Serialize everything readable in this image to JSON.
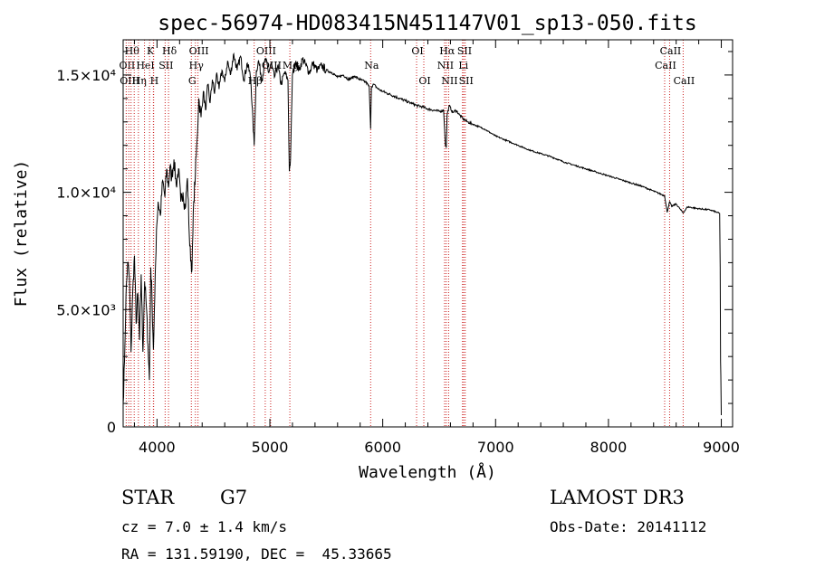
{
  "chart_data": {
    "type": "line",
    "title": "spec-56974-HD083415N451147V01_sp13-050.fits",
    "xlabel": "Wavelength (Å)",
    "ylabel": "Flux (relative)",
    "xlim": [
      3700,
      9100
    ],
    "ylim": [
      0,
      16500
    ],
    "xticks": [
      {
        "value": 4000,
        "label": "4000"
      },
      {
        "value": 5000,
        "label": "5000"
      },
      {
        "value": 6000,
        "label": "6000"
      },
      {
        "value": 7000,
        "label": "7000"
      },
      {
        "value": 8000,
        "label": "8000"
      },
      {
        "value": 9000,
        "label": "9000"
      }
    ],
    "yticks": [
      {
        "value": 0,
        "label": "0"
      },
      {
        "value": 5000,
        "label": "5.0×10³"
      },
      {
        "value": 10000,
        "label": "1.0×10⁴"
      },
      {
        "value": 15000,
        "label": "1.5×10⁴"
      }
    ],
    "spectrum": {
      "wavelength": [
        3700,
        3712,
        3725,
        3740,
        3755,
        3770,
        3785,
        3800,
        3815,
        3830,
        3845,
        3860,
        3875,
        3890,
        3905,
        3920,
        3933,
        3945,
        3955,
        3968,
        3980,
        3995,
        4010,
        4030,
        4050,
        4070,
        4085,
        4101,
        4115,
        4130,
        4150,
        4170,
        4190,
        4210,
        4230,
        4250,
        4270,
        4290,
        4310,
        4325,
        4340,
        4355,
        4370,
        4390,
        4410,
        4430,
        4450,
        4470,
        4490,
        4510,
        4530,
        4550,
        4575,
        4600,
        4625,
        4650,
        4680,
        4710,
        4740,
        4770,
        4800,
        4830,
        4861,
        4880,
        4900,
        4930,
        4960,
        4990,
        5010,
        5040,
        5070,
        5100,
        5130,
        5160,
        5172,
        5183,
        5200,
        5230,
        5260,
        5290,
        5320,
        5350,
        5380,
        5420,
        5460,
        5500,
        5550,
        5600,
        5650,
        5700,
        5750,
        5800,
        5850,
        5880,
        5893,
        5900,
        5920,
        5960,
        6000,
        6050,
        6100,
        6150,
        6200,
        6250,
        6300,
        6350,
        6400,
        6450,
        6500,
        6540,
        6555,
        6563,
        6570,
        6590,
        6620,
        6650,
        6680,
        6710,
        6750,
        6800,
        6850,
        6900,
        6950,
        7000,
        7100,
        7200,
        7300,
        7400,
        7500,
        7600,
        7700,
        7800,
        7900,
        8000,
        8100,
        8200,
        8300,
        8400,
        8450,
        8498,
        8520,
        8542,
        8560,
        8600,
        8662,
        8700,
        8800,
        8900,
        8960,
        8985,
        8990,
        8993,
        8996,
        9000
      ],
      "flux": [
        1000,
        2800,
        5600,
        7000,
        6400,
        3200,
        5800,
        7300,
        4400,
        5700,
        3700,
        6500,
        3200,
        6200,
        5200,
        3500,
        2000,
        6800,
        5600,
        3300,
        5500,
        8400,
        9600,
        9000,
        10500,
        9800,
        11000,
        10200,
        11100,
        10600,
        11400,
        10300,
        11000,
        9600,
        10000,
        9300,
        10600,
        7700,
        6700,
        9600,
        10800,
        12200,
        14000,
        13200,
        14300,
        13500,
        14600,
        13800,
        14800,
        14200,
        15100,
        14400,
        15200,
        14700,
        15600,
        15000,
        15900,
        15200,
        15800,
        14800,
        15500,
        14900,
        12000,
        15200,
        15600,
        14800,
        15700,
        15100,
        15500,
        14900,
        15400,
        14600,
        15100,
        14800,
        10900,
        11400,
        15000,
        15600,
        15200,
        15700,
        15400,
        15100,
        15500,
        15200,
        15400,
        15200,
        15100,
        14900,
        15000,
        14800,
        14950,
        14800,
        14700,
        14500,
        12700,
        14500,
        14600,
        14400,
        14300,
        14200,
        14100,
        14000,
        13900,
        13800,
        13700,
        13650,
        13550,
        13500,
        13450,
        13500,
        12000,
        11900,
        13300,
        13700,
        13400,
        13500,
        13300,
        13150,
        13000,
        12900,
        12800,
        12700,
        12550,
        12400,
        12200,
        12000,
        11800,
        11650,
        11500,
        11300,
        11150,
        11000,
        10850,
        10700,
        10550,
        10400,
        10250,
        10050,
        9950,
        9850,
        9150,
        9600,
        9400,
        9500,
        9120,
        9380,
        9300,
        9250,
        9150,
        9100,
        6800,
        2800,
        2200,
        500
      ]
    },
    "line_markers": [
      {
        "wl": 3727,
        "label": "OII",
        "row": 1
      },
      {
        "wl": 3750,
        "label": "OIII",
        "row": 2
      },
      {
        "wl": 3770,
        "label": "Hθ",
        "row": 0
      },
      {
        "wl": 3798,
        "label": "",
        "row": 0
      },
      {
        "wl": 3835,
        "label": "Hη",
        "row": 2
      },
      {
        "wl": 3889,
        "label": "HeI",
        "row": 1
      },
      {
        "wl": 3934,
        "label": "K",
        "row": 0
      },
      {
        "wl": 3968,
        "label": "H",
        "row": 2
      },
      {
        "wl": 3970,
        "label": "",
        "row": 0
      },
      {
        "wl": 4072,
        "label": "SII",
        "row": 1
      },
      {
        "wl": 4102,
        "label": "Hδ",
        "row": 0
      },
      {
        "wl": 4304,
        "label": "G",
        "row": 2
      },
      {
        "wl": 4340,
        "label": "Hγ",
        "row": 1
      },
      {
        "wl": 4363,
        "label": "OIII",
        "row": 0
      },
      {
        "wl": 4861,
        "label": "Hβ",
        "row": 2
      },
      {
        "wl": 4959,
        "label": "OIII",
        "row": 0
      },
      {
        "wl": 5007,
        "label": "OIII",
        "row": 1
      },
      {
        "wl": 5177,
        "label": "Mg",
        "row": 1
      },
      {
        "wl": 5893,
        "label": "Na",
        "row": 1
      },
      {
        "wl": 6300,
        "label": "OI",
        "row": 0
      },
      {
        "wl": 6364,
        "label": "OI",
        "row": 2
      },
      {
        "wl": 6548,
        "label": "NII",
        "row": 1
      },
      {
        "wl": 6563,
        "label": "Hα",
        "row": 0
      },
      {
        "wl": 6584,
        "label": "NII",
        "row": 2
      },
      {
        "wl": 6707,
        "label": "Li",
        "row": 1
      },
      {
        "wl": 6717,
        "label": "SII",
        "row": 0
      },
      {
        "wl": 6731,
        "label": "SII",
        "row": 2
      },
      {
        "wl": 8498,
        "label": "CaII",
        "row": 1
      },
      {
        "wl": 8542,
        "label": "CaII",
        "row": 0
      },
      {
        "wl": 8662,
        "label": "CaII",
        "row": 2
      }
    ]
  },
  "info": {
    "object_class": "STAR",
    "subclass": "G7",
    "survey": "LAMOST DR3",
    "redshift_text": "cz = 7.0 ± 1.4 km/s",
    "obs_date_text": "Obs-Date: 20141112",
    "coords_text": "RA = 131.59190, DEC =  45.33665"
  },
  "colors": {
    "spectrum": "#000000",
    "marker": "#cc2222",
    "axis": "#000000"
  }
}
